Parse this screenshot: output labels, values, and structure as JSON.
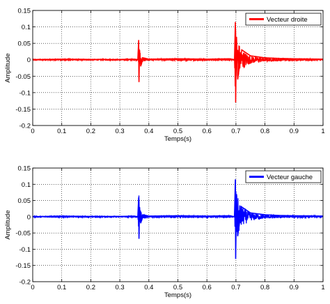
{
  "chart_data": [
    {
      "type": "line",
      "xlabel": "Temps(s)",
      "ylabel": "Amplitude",
      "xlim": [
        0,
        1
      ],
      "ylim": [
        -0.2,
        0.15
      ],
      "x_ticks": [
        "0",
        "0.1",
        "0.2",
        "0.3",
        "0.4",
        "0.5",
        "0.6",
        "0.7",
        "0.8",
        "0.9",
        "1"
      ],
      "y_ticks": [
        "0.15",
        "0.1",
        "0.05",
        "0",
        "-0.05",
        "-0.1",
        "-0.15",
        "-0.2"
      ],
      "grid": true,
      "grid_style": "dotted",
      "legend_position": "top-right",
      "series": [
        {
          "name": "Vecteur droite",
          "color": "#ff0000",
          "points": [
            [
              0,
              0
            ],
            [
              0.1,
              0.002
            ],
            [
              0.2,
              0.001
            ],
            [
              0.3,
              0.001
            ],
            [
              0.35,
              0.002
            ],
            [
              0.362,
              0.0
            ],
            [
              0.365,
              0.06
            ],
            [
              0.366,
              -0.068
            ],
            [
              0.368,
              0.03
            ],
            [
              0.372,
              -0.02
            ],
            [
              0.38,
              0.006
            ],
            [
              0.4,
              0.002
            ],
            [
              0.5,
              0.003
            ],
            [
              0.6,
              0.002
            ],
            [
              0.68,
              0.003
            ],
            [
              0.695,
              0.0
            ],
            [
              0.698,
              0.115
            ],
            [
              0.699,
              -0.13
            ],
            [
              0.702,
              0.07
            ],
            [
              0.706,
              -0.06
            ],
            [
              0.72,
              0.03
            ],
            [
              0.75,
              0.012
            ],
            [
              0.8,
              0.006
            ],
            [
              0.85,
              0.004
            ],
            [
              0.9,
              0.003
            ],
            [
              1.0,
              0.002
            ]
          ]
        }
      ]
    },
    {
      "type": "line",
      "xlabel": "Temps(s)",
      "ylabel": "Amplitude",
      "xlim": [
        0,
        1
      ],
      "ylim": [
        -0.2,
        0.15
      ],
      "x_ticks": [
        "0",
        "0.1",
        "0.2",
        "0.3",
        "0.4",
        "0.5",
        "0.6",
        "0.7",
        "0.8",
        "0.9",
        "1"
      ],
      "y_ticks": [
        "0.15",
        "0.1",
        "0.05",
        "0",
        "-0.05",
        "-0.1",
        "-0.15",
        "-0.2"
      ],
      "grid": true,
      "grid_style": "dotted",
      "legend_position": "top-right",
      "series": [
        {
          "name": "Vecteur gauche",
          "color": "#0000ff",
          "points": [
            [
              0,
              0
            ],
            [
              0.1,
              0.002
            ],
            [
              0.2,
              0.001
            ],
            [
              0.3,
              0.001
            ],
            [
              0.35,
              0.002
            ],
            [
              0.362,
              0.0
            ],
            [
              0.365,
              0.06
            ],
            [
              0.366,
              -0.068
            ],
            [
              0.368,
              0.03
            ],
            [
              0.372,
              -0.02
            ],
            [
              0.38,
              0.006
            ],
            [
              0.4,
              0.002
            ],
            [
              0.5,
              0.003
            ],
            [
              0.6,
              0.002
            ],
            [
              0.68,
              0.003
            ],
            [
              0.695,
              0.0
            ],
            [
              0.698,
              0.115
            ],
            [
              0.699,
              -0.13
            ],
            [
              0.702,
              0.07
            ],
            [
              0.706,
              -0.06
            ],
            [
              0.72,
              0.03
            ],
            [
              0.75,
              0.012
            ],
            [
              0.8,
              0.006
            ],
            [
              0.85,
              0.004
            ],
            [
              0.9,
              0.003
            ],
            [
              1.0,
              0.002
            ]
          ]
        }
      ]
    }
  ]
}
